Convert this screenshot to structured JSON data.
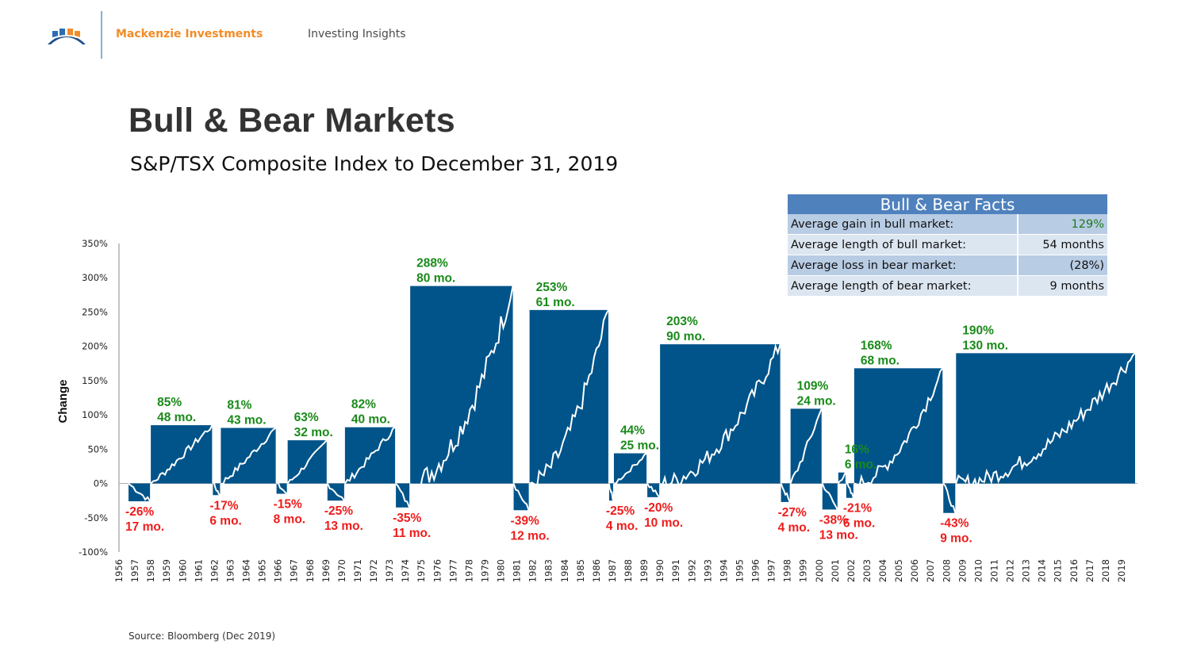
{
  "header": {
    "brand": "Mackenzie Investments",
    "section": "Investing Insights",
    "logo_icon": "mackenzie-bridge-logo-icon"
  },
  "page": {
    "title": "Bull & Bear Markets",
    "subtitle": "S&P/TSX Composite Index to December 31, 2019",
    "source": "Source: Bloomberg (Dec 2019)"
  },
  "facts_table": {
    "title": "Bull & Bear Facts",
    "rows": [
      {
        "label": "Average gain in bull market:",
        "value": "129%"
      },
      {
        "label": "Average length of bull market:",
        "value": "54 months"
      },
      {
        "label": "Average loss in bear market:",
        "value": "(28%)"
      },
      {
        "label": "Average length of bear market:",
        "value": "9 months"
      }
    ]
  },
  "colors": {
    "bar": "#00548a",
    "bull_label": "#1a8a1a",
    "bear_label": "#ee1c1c",
    "line": "#ffffff",
    "table_header": "#4f81bd"
  },
  "chart_data": {
    "type": "bar",
    "title": "Bull & Bear Markets",
    "subtitle": "S&P/TSX Composite Index to December 31, 2019",
    "xlabel": "",
    "ylabel": "Change",
    "ylim": [
      -100,
      350
    ],
    "yticks": [
      350,
      300,
      250,
      200,
      150,
      100,
      50,
      0,
      -50,
      -100
    ],
    "ytick_labels": [
      "350%",
      "300%",
      "250%",
      "200%",
      "150%",
      "100%",
      "50%",
      "0%",
      "-50%",
      "-100%"
    ],
    "x_range": [
      1956,
      2020
    ],
    "categories": [
      "1956",
      "1957",
      "1958",
      "1959",
      "1960",
      "1961",
      "1962",
      "1963",
      "1964",
      "1965",
      "1966",
      "1967",
      "1968",
      "1969",
      "1970",
      "1971",
      "1972",
      "1973",
      "1974",
      "1975",
      "1976",
      "1977",
      "1978",
      "1979",
      "1980",
      "1981",
      "1982",
      "1983",
      "1984",
      "1985",
      "1986",
      "1987",
      "1988",
      "1989",
      "1990",
      "1991",
      "1992",
      "1993",
      "1994",
      "1995",
      "1996",
      "1997",
      "1998",
      "1999",
      "2000",
      "2001",
      "2002",
      "2003",
      "2004",
      "2005",
      "2006",
      "2007",
      "2008",
      "2009",
      "2010",
      "2011",
      "2012",
      "2013",
      "2014",
      "2015",
      "2016",
      "2017",
      "2018",
      "2019"
    ],
    "grid": false,
    "legend": "none",
    "series": [
      {
        "name": "Bear",
        "type": "bear",
        "start": 1956.6,
        "end": 1958.0,
        "value": -26,
        "months": 17,
        "label": "-26%",
        "sublabel": "17 mo."
      },
      {
        "name": "Bull",
        "type": "bull",
        "start": 1958.0,
        "end": 1961.9,
        "value": 85,
        "months": 48,
        "label": "85%",
        "sublabel": "48 mo."
      },
      {
        "name": "Bear",
        "type": "bear",
        "start": 1961.9,
        "end": 1962.4,
        "value": -17,
        "months": 6,
        "label": "-17%",
        "sublabel": "6 mo."
      },
      {
        "name": "Bull",
        "type": "bull",
        "start": 1962.4,
        "end": 1965.9,
        "value": 81,
        "months": 43,
        "label": "81%",
        "sublabel": "43 mo."
      },
      {
        "name": "Bear",
        "type": "bear",
        "start": 1965.9,
        "end": 1966.6,
        "value": -15,
        "months": 8,
        "label": "-15%",
        "sublabel": "8 mo."
      },
      {
        "name": "Bull",
        "type": "bull",
        "start": 1966.6,
        "end": 1969.1,
        "value": 63,
        "months": 32,
        "label": "63%",
        "sublabel": "32 mo."
      },
      {
        "name": "Bear",
        "type": "bear",
        "start": 1969.1,
        "end": 1970.2,
        "value": -25,
        "months": 13,
        "label": "-25%",
        "sublabel": "13 mo."
      },
      {
        "name": "Bull",
        "type": "bull",
        "start": 1970.2,
        "end": 1973.4,
        "value": 82,
        "months": 40,
        "label": "82%",
        "sublabel": "40 mo."
      },
      {
        "name": "Bear",
        "type": "bear",
        "start": 1973.4,
        "end": 1974.3,
        "value": -35,
        "months": 11,
        "label": "-35%",
        "sublabel": "11 mo."
      },
      {
        "name": "Bull",
        "type": "bull",
        "start": 1974.3,
        "end": 1980.8,
        "value": 288,
        "months": 80,
        "label": "288%",
        "sublabel": "80 mo."
      },
      {
        "name": "Bear",
        "type": "bear",
        "start": 1980.8,
        "end": 1981.8,
        "value": -39,
        "months": 12,
        "label": "-39%",
        "sublabel": "12 mo."
      },
      {
        "name": "Bull",
        "type": "bull",
        "start": 1981.8,
        "end": 1986.8,
        "value": 253,
        "months": 61,
        "label": "253%",
        "sublabel": "61 mo."
      },
      {
        "name": "Bear",
        "type": "bear",
        "start": 1986.8,
        "end": 1987.1,
        "value": -25,
        "months": 4,
        "label": "-25%",
        "sublabel": "4 mo."
      },
      {
        "name": "Bull",
        "type": "bull",
        "start": 1987.1,
        "end": 1989.2,
        "value": 44,
        "months": 25,
        "label": "44%",
        "sublabel": "25 mo."
      },
      {
        "name": "Bear",
        "type": "bear",
        "start": 1989.2,
        "end": 1990.0,
        "value": -20,
        "months": 10,
        "label": "-20%",
        "sublabel": "10 mo."
      },
      {
        "name": "Bull",
        "type": "bull",
        "start": 1990.0,
        "end": 1997.6,
        "value": 203,
        "months": 90,
        "label": "203%",
        "sublabel": "90 mo."
      },
      {
        "name": "Bear",
        "type": "bear",
        "start": 1997.6,
        "end": 1998.2,
        "value": -27,
        "months": 4,
        "label": "-27%",
        "sublabel": "4 mo."
      },
      {
        "name": "Bull",
        "type": "bull",
        "start": 1998.2,
        "end": 2000.2,
        "value": 109,
        "months": 24,
        "label": "109%",
        "sublabel": "24 mo."
      },
      {
        "name": "Bear",
        "type": "bear",
        "start": 2000.2,
        "end": 2001.2,
        "value": -38,
        "months": 13,
        "label": "-38%",
        "sublabel": "13 mo."
      },
      {
        "name": "Bull",
        "type": "bull",
        "start": 2001.2,
        "end": 2001.7,
        "value": 16,
        "months": 6,
        "label": "16%",
        "sublabel": "6 mo."
      },
      {
        "name": "Bear",
        "type": "bear",
        "start": 2001.7,
        "end": 2002.2,
        "value": -21,
        "months": 6,
        "label": "-21%",
        "sublabel": "6 mo."
      },
      {
        "name": "Bull",
        "type": "bull",
        "start": 2002.2,
        "end": 2007.8,
        "value": 168,
        "months": 68,
        "label": "168%",
        "sublabel": "68 mo."
      },
      {
        "name": "Bear",
        "type": "bear",
        "start": 2007.8,
        "end": 2008.6,
        "value": -43,
        "months": 9,
        "label": "-43%",
        "sublabel": "9 mo."
      },
      {
        "name": "Bull",
        "type": "bull",
        "start": 2008.6,
        "end": 2019.9,
        "value": 190,
        "months": 130,
        "label": "190%",
        "sublabel": "130 mo."
      }
    ]
  }
}
